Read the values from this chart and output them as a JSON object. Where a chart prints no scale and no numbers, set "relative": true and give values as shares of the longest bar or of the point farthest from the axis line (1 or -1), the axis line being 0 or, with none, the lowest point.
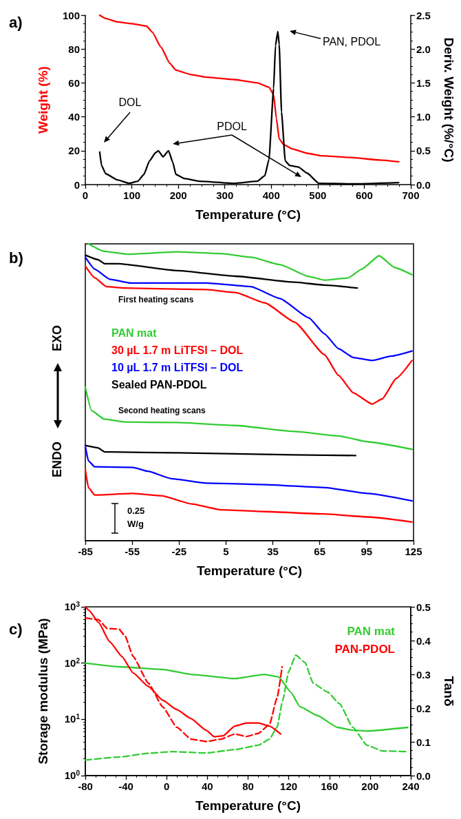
{
  "chart_data": [
    {
      "type": "line",
      "title": "a)",
      "xlabel": "Temperature (°C)",
      "ylabel": "Weight (%)",
      "y2label": "Deriv. Weight (%/°C)",
      "xlim": [
        0,
        700
      ],
      "xticks": [
        0,
        100,
        200,
        300,
        400,
        500,
        600,
        700
      ],
      "ylim": [
        0,
        100
      ],
      "yticks": [
        0,
        20,
        40,
        60,
        80,
        100
      ],
      "y2lim": [
        0,
        2.5
      ],
      "y2ticks": [
        {
          "value": 0,
          "label": "0.0"
        },
        {
          "value": 0.5,
          "label": "0.5"
        },
        {
          "value": 1,
          "label": "1.0"
        },
        {
          "value": 1.5,
          "label": "1.5"
        },
        {
          "value": 2,
          "label": "2.0"
        },
        {
          "value": 2.5,
          "label": "2.5"
        }
      ],
      "series": [
        {
          "color": "#ff0000",
          "x": [
            31,
            44,
            69,
            100,
            132,
            144,
            163,
            182,
            195,
            226,
            257,
            320,
            370,
            395,
            405,
            411,
            417,
            427,
            446,
            477,
            508,
            571,
            634,
            674
          ],
          "values": [
            100,
            98,
            96,
            95,
            93.5,
            90,
            81,
            71.5,
            67.5,
            65,
            63.5,
            62,
            60,
            57.5,
            53,
            39,
            27,
            23.5,
            21,
            18.5,
            17,
            16,
            14.5,
            13.5
          ]
        },
        {
          "color": "#000000",
          "axis": "y2",
          "x": [
            31,
            35,
            44,
            69,
            94,
            113,
            126,
            138,
            151,
            157,
            167,
            179,
            188,
            195,
            213,
            245,
            320,
            370,
            386,
            395,
            405,
            409,
            414,
            417,
            422,
            430,
            440,
            458,
            477,
            502,
            571,
            674
          ],
          "values": [
            0.48,
            0.28,
            0.16,
            0.07,
            0.02,
            0.05,
            0.15,
            0.35,
            0.47,
            0.5,
            0.41,
            0.5,
            0.33,
            0.15,
            0.09,
            0.05,
            0.02,
            0.05,
            0.13,
            0.37,
            1.42,
            2.05,
            2.26,
            2.07,
            1.07,
            0.35,
            0.28,
            0.26,
            0.17,
            0.02,
            0.01,
            0.03
          ]
        }
      ],
      "annotations": [
        "DOL",
        "PDOL",
        "PAN, PDOL"
      ]
    },
    {
      "type": "line",
      "title": "b)",
      "xlabel": "Temperature (°C)",
      "relative": true,
      "legend": "left",
      "xlim": [
        -85,
        125
      ],
      "xticks": [
        -85,
        -55,
        -25,
        5,
        35,
        65,
        95,
        125
      ],
      "series": [
        {
          "name": "PAN mat",
          "color": "#33cc33",
          "x": [
            -83,
            -73,
            -58,
            -26,
            2,
            21,
            39.5,
            58,
            68,
            83,
            92,
            103,
            113,
            124
          ],
          "values": [
            1.0,
            0.975,
            0.965,
            0.973,
            0.967,
            0.955,
            0.93,
            0.89,
            0.878,
            0.885,
            0.915,
            0.96,
            0.92,
            0.896
          ]
        },
        {
          "name": "30 µL 1.7 m LiTFSI – DOL",
          "color": "#ff0000",
          "x": [
            -85,
            -79,
            -71.5,
            -60,
            -7.5,
            11,
            30,
            49,
            68,
            77,
            86.5,
            98.5,
            105,
            114,
            124
          ],
          "values": [
            0.925,
            0.886,
            0.856,
            0.851,
            0.846,
            0.836,
            0.801,
            0.736,
            0.627,
            0.557,
            0.498,
            0.46,
            0.478,
            0.547,
            0.607
          ]
        },
        {
          "name": "10 µL 1.7 m LiTFSI – DOL",
          "color": "#0000ff",
          "x": [
            -85,
            -79,
            -69.5,
            -56,
            -7.5,
            21,
            39.5,
            58,
            68,
            77,
            86.5,
            98.5,
            111,
            124
          ],
          "values": [
            0.955,
            0.915,
            0.881,
            0.868,
            0.868,
            0.856,
            0.816,
            0.751,
            0.697,
            0.647,
            0.617,
            0.607,
            0.622,
            0.639
          ]
        },
        {
          "name": "Sealed PAN-PDOL",
          "color": "#000000",
          "x": [
            -85,
            -77,
            -72.5,
            -64,
            -26,
            11,
            49,
            68,
            89
          ],
          "values": [
            0.962,
            0.947,
            0.933,
            0.933,
            0.91,
            0.891,
            0.871,
            0.861,
            0.851
          ]
        },
        {
          "color": "#33cc33",
          "x": [
            -85,
            -81,
            -73,
            -60,
            -26,
            11,
            49,
            77,
            96,
            124
          ],
          "values": [
            0.517,
            0.438,
            0.41,
            0.4,
            0.398,
            0.388,
            0.368,
            0.353,
            0.333,
            0.308
          ]
        },
        {
          "color": "#000000",
          "x": [
            -85,
            -77,
            -72.5,
            -68,
            -26,
            49,
            88
          ],
          "values": [
            0.321,
            0.313,
            0.299,
            0.299,
            0.296,
            0.289,
            0.287
          ]
        },
        {
          "color": "#0000ff",
          "x": [
            -85,
            -83,
            -79,
            -54.5,
            -45,
            -30,
            -7.5,
            30,
            68,
            96,
            124
          ],
          "values": [
            0.318,
            0.269,
            0.249,
            0.247,
            0.234,
            0.209,
            0.194,
            0.189,
            0.179,
            0.159,
            0.134
          ]
        },
        {
          "color": "#ff0000",
          "x": [
            -85,
            -83,
            -79,
            -54.5,
            -36,
            -17,
            2,
            30,
            68,
            96,
            124
          ],
          "values": [
            0.239,
            0.179,
            0.154,
            0.159,
            0.151,
            0.124,
            0.104,
            0.098,
            0.09,
            0.08,
            0.063
          ]
        }
      ],
      "annotations": [
        "First heating scans",
        "Second heating scans",
        "EXO",
        "ENDO",
        "0.25 W/g"
      ]
    },
    {
      "type": "line",
      "title": "c)",
      "xlabel": "Temperature (°C)",
      "ylabel": "Storage modulus (MPa)",
      "y2label": "Tanδ",
      "log": "y",
      "legend": "top right",
      "xlim": [
        -80,
        240
      ],
      "xticks": [
        -80,
        -40,
        0,
        40,
        80,
        120,
        160,
        200,
        240
      ],
      "ylim": [
        1,
        1000
      ],
      "yticks": [
        {
          "value": 1,
          "label": "10$^{0}$"
        },
        {
          "value": 10,
          "label": "10$^{1}$"
        },
        {
          "value": 100,
          "label": "10$^{2}$"
        },
        {
          "value": 1000,
          "label": "10$^{3}$"
        }
      ],
      "y2lim": [
        0,
        0.5
      ],
      "y2ticks": [
        {
          "value": 0,
          "label": "0.0"
        },
        0.1,
        0.2,
        0.3,
        0.4,
        0.5
      ],
      "series": [
        {
          "name": "PAN mat",
          "color": "#33cc33",
          "x": [
            -80,
            -47,
            -4,
            24,
            67,
            96,
            110,
            122,
            131,
            148,
            168,
            183,
            197,
            237
          ],
          "values": [
            100,
            86,
            77,
            63,
            53,
            63,
            57,
            30.5,
            16.8,
            11.7,
            7.2,
            6.4,
            6.2,
            7.2
          ]
        },
        {
          "color": "#33cc33",
          "axis": "y2",
          "line_style": "dashed",
          "x": [
            -80,
            -47,
            -18,
            5,
            39,
            67,
            90,
            101,
            108.5,
            114,
            120,
            127,
            136,
            144,
            158,
            170,
            183,
            197,
            212,
            237
          ],
          "values": [
            0.046,
            0.055,
            0.066,
            0.071,
            0.067,
            0.077,
            0.09,
            0.108,
            0.143,
            0.222,
            0.309,
            0.357,
            0.335,
            0.274,
            0.248,
            0.213,
            0.143,
            0.09,
            0.073,
            0.071
          ]
        },
        {
          "name": "PAN-PDOL",
          "color": "#ff0000",
          "x": [
            -80,
            -76,
            -67,
            -56,
            -44,
            -33,
            -18,
            -4,
            10,
            24,
            39,
            47,
            55.5,
            67,
            78.5,
            90,
            101,
            112
          ],
          "values": [
            1000,
            855,
            527,
            240,
            131,
            67,
            38.5,
            22,
            14.9,
            10.3,
            6.35,
            4.9,
            5.1,
            7.6,
            8.6,
            8.6,
            7.6,
            5.5
          ]
        },
        {
          "color": "#ff0000",
          "axis": "y2",
          "line_style": "dashed",
          "x": [
            -80,
            -67,
            -58.5,
            -47,
            -41,
            -33,
            -18,
            -4,
            10,
            24,
            39,
            53,
            67,
            78.5,
            90,
            101,
            108.5,
            113.5
          ],
          "values": [
            0.467,
            0.462,
            0.436,
            0.434,
            0.414,
            0.353,
            0.274,
            0.204,
            0.143,
            0.108,
            0.101,
            0.108,
            0.123,
            0.116,
            0.125,
            0.151,
            0.23,
            0.322
          ]
        }
      ]
    }
  ]
}
